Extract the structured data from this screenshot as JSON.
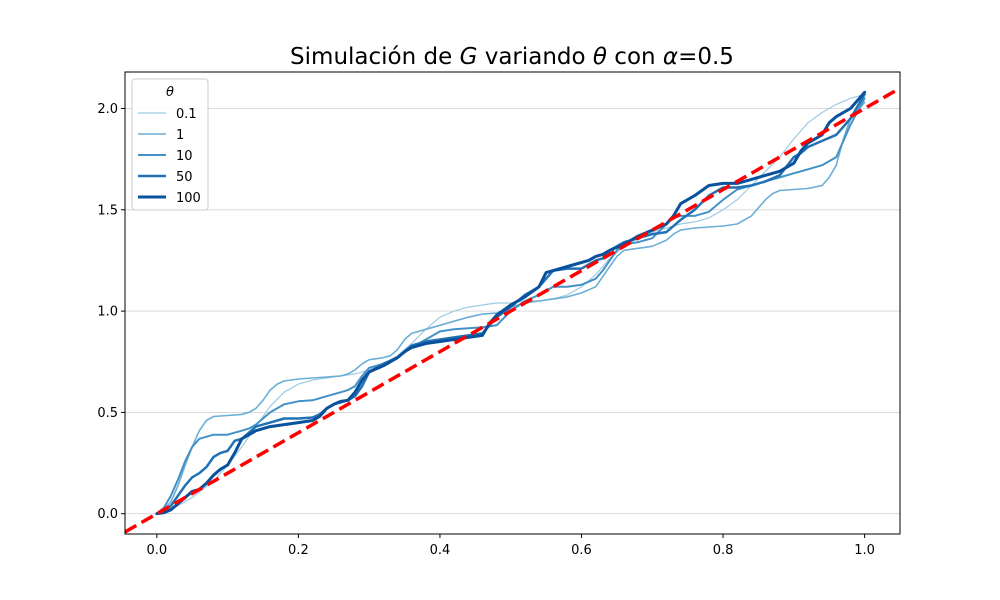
{
  "chart_data": {
    "type": "line",
    "title_parts": [
      {
        "text": "Simulación de ",
        "italic": false
      },
      {
        "text": "G",
        "italic": true
      },
      {
        "text": " variando ",
        "italic": false
      },
      {
        "text": "θ",
        "italic": true
      },
      {
        "text": " con ",
        "italic": false
      },
      {
        "text": "α",
        "italic": true
      },
      {
        "text": "=0.5",
        "italic": false
      }
    ],
    "xlim": [
      -0.045,
      1.05
    ],
    "ylim": [
      -0.1,
      2.18
    ],
    "xticks": [
      0.0,
      0.2,
      0.4,
      0.6,
      0.8,
      1.0
    ],
    "xtick_labels": [
      "0.0",
      "0.2",
      "0.4",
      "0.6",
      "0.8",
      "1.0"
    ],
    "yticks": [
      0.0,
      0.5,
      1.0,
      1.5,
      2.0
    ],
    "ytick_labels": [
      "0.0",
      "0.5",
      "1.0",
      "1.5",
      "2.0"
    ],
    "grid": "horizontal",
    "legend": {
      "title": "θ",
      "placement": "upper-left"
    },
    "series": [
      {
        "name": "0.1",
        "color": "#9ecae1",
        "linewidth": 1.2,
        "x": [
          0,
          0.02,
          0.05,
          0.08,
          0.1,
          0.12,
          0.14,
          0.16,
          0.18,
          0.2,
          0.22,
          0.24,
          0.26,
          0.28,
          0.3,
          0.32,
          0.34,
          0.36,
          0.38,
          0.4,
          0.42,
          0.44,
          0.46,
          0.48,
          0.5,
          0.52,
          0.54,
          0.56,
          0.58,
          0.6,
          0.62,
          0.64,
          0.66,
          0.68,
          0.7,
          0.72,
          0.74,
          0.76,
          0.78,
          0.8,
          0.82,
          0.84,
          0.86,
          0.88,
          0.9,
          0.92,
          0.94,
          0.96,
          0.98,
          1.0
        ],
        "y": [
          0,
          0.02,
          0.08,
          0.16,
          0.24,
          0.33,
          0.43,
          0.53,
          0.6,
          0.64,
          0.66,
          0.67,
          0.68,
          0.69,
          0.71,
          0.74,
          0.78,
          0.84,
          0.91,
          0.97,
          1.0,
          1.02,
          1.03,
          1.04,
          1.04,
          1.05,
          1.05,
          1.06,
          1.08,
          1.12,
          1.18,
          1.26,
          1.32,
          1.36,
          1.39,
          1.41,
          1.43,
          1.44,
          1.46,
          1.5,
          1.55,
          1.62,
          1.69,
          1.76,
          1.85,
          1.93,
          1.98,
          2.02,
          2.05,
          2.07
        ]
      },
      {
        "name": "1",
        "color": "#6baed6",
        "linewidth": 1.6,
        "x": [
          0,
          0.01,
          0.02,
          0.03,
          0.04,
          0.05,
          0.06,
          0.07,
          0.08,
          0.1,
          0.12,
          0.13,
          0.14,
          0.15,
          0.16,
          0.17,
          0.18,
          0.2,
          0.22,
          0.24,
          0.26,
          0.27,
          0.28,
          0.29,
          0.3,
          0.32,
          0.33,
          0.34,
          0.35,
          0.36,
          0.38,
          0.4,
          0.42,
          0.44,
          0.46,
          0.48,
          0.5,
          0.52,
          0.54,
          0.56,
          0.58,
          0.6,
          0.62,
          0.63,
          0.64,
          0.65,
          0.66,
          0.68,
          0.7,
          0.72,
          0.73,
          0.74,
          0.76,
          0.78,
          0.8,
          0.82,
          0.84,
          0.86,
          0.87,
          0.88,
          0.9,
          0.92,
          0.94,
          0.95,
          0.96,
          0.97,
          0.98,
          1.0
        ],
        "y": [
          0,
          0.02,
          0.06,
          0.14,
          0.24,
          0.33,
          0.41,
          0.46,
          0.48,
          0.485,
          0.49,
          0.5,
          0.52,
          0.56,
          0.61,
          0.64,
          0.655,
          0.665,
          0.67,
          0.675,
          0.68,
          0.69,
          0.71,
          0.74,
          0.76,
          0.77,
          0.78,
          0.81,
          0.86,
          0.89,
          0.91,
          0.93,
          0.95,
          0.97,
          0.985,
          0.99,
          1.02,
          1.04,
          1.05,
          1.06,
          1.07,
          1.09,
          1.12,
          1.17,
          1.22,
          1.27,
          1.3,
          1.31,
          1.32,
          1.35,
          1.38,
          1.4,
          1.41,
          1.415,
          1.42,
          1.43,
          1.47,
          1.55,
          1.58,
          1.595,
          1.6,
          1.605,
          1.62,
          1.66,
          1.72,
          1.85,
          1.95,
          2.03
        ]
      },
      {
        "name": "10",
        "color": "#4292c6",
        "linewidth": 2.0,
        "x": [
          0,
          0.01,
          0.02,
          0.03,
          0.04,
          0.05,
          0.06,
          0.08,
          0.1,
          0.11,
          0.12,
          0.13,
          0.14,
          0.16,
          0.18,
          0.2,
          0.22,
          0.24,
          0.26,
          0.27,
          0.28,
          0.29,
          0.3,
          0.32,
          0.34,
          0.36,
          0.38,
          0.4,
          0.42,
          0.44,
          0.46,
          0.48,
          0.5,
          0.52,
          0.54,
          0.55,
          0.56,
          0.58,
          0.6,
          0.62,
          0.63,
          0.64,
          0.65,
          0.66,
          0.68,
          0.7,
          0.72,
          0.73,
          0.74,
          0.76,
          0.78,
          0.8,
          0.82,
          0.84,
          0.86,
          0.88,
          0.9,
          0.92,
          0.94,
          0.96,
          0.98,
          1.0
        ],
        "y": [
          0,
          0.03,
          0.09,
          0.17,
          0.26,
          0.33,
          0.37,
          0.39,
          0.39,
          0.4,
          0.41,
          0.42,
          0.44,
          0.5,
          0.54,
          0.555,
          0.56,
          0.58,
          0.6,
          0.61,
          0.63,
          0.68,
          0.72,
          0.74,
          0.77,
          0.82,
          0.86,
          0.9,
          0.91,
          0.915,
          0.92,
          0.93,
          1.0,
          1.05,
          1.08,
          1.1,
          1.12,
          1.12,
          1.13,
          1.16,
          1.2,
          1.25,
          1.3,
          1.33,
          1.34,
          1.36,
          1.43,
          1.46,
          1.47,
          1.47,
          1.49,
          1.55,
          1.6,
          1.62,
          1.64,
          1.66,
          1.68,
          1.7,
          1.72,
          1.76,
          1.92,
          2.05
        ]
      },
      {
        "name": "50",
        "color": "#2171b5",
        "linewidth": 2.5,
        "x": [
          0,
          0.01,
          0.02,
          0.03,
          0.04,
          0.05,
          0.06,
          0.07,
          0.08,
          0.09,
          0.1,
          0.11,
          0.12,
          0.13,
          0.14,
          0.15,
          0.16,
          0.18,
          0.2,
          0.22,
          0.23,
          0.24,
          0.25,
          0.26,
          0.27,
          0.28,
          0.29,
          0.3,
          0.32,
          0.34,
          0.35,
          0.36,
          0.38,
          0.4,
          0.42,
          0.44,
          0.46,
          0.47,
          0.48,
          0.5,
          0.52,
          0.54,
          0.55,
          0.56,
          0.58,
          0.6,
          0.61,
          0.62,
          0.63,
          0.64,
          0.66,
          0.68,
          0.7,
          0.72,
          0.74,
          0.76,
          0.78,
          0.8,
          0.82,
          0.84,
          0.86,
          0.88,
          0.9,
          0.91,
          0.92,
          0.94,
          0.96,
          0.98,
          1.0
        ],
        "y": [
          0,
          0.01,
          0.04,
          0.09,
          0.14,
          0.18,
          0.2,
          0.23,
          0.28,
          0.3,
          0.31,
          0.36,
          0.37,
          0.4,
          0.43,
          0.44,
          0.45,
          0.47,
          0.47,
          0.475,
          0.49,
          0.52,
          0.54,
          0.55,
          0.56,
          0.58,
          0.63,
          0.7,
          0.74,
          0.77,
          0.8,
          0.83,
          0.85,
          0.86,
          0.87,
          0.88,
          0.89,
          0.93,
          0.97,
          1.02,
          1.08,
          1.12,
          1.16,
          1.2,
          1.21,
          1.21,
          1.23,
          1.25,
          1.26,
          1.3,
          1.34,
          1.36,
          1.38,
          1.39,
          1.45,
          1.5,
          1.57,
          1.61,
          1.61,
          1.62,
          1.64,
          1.67,
          1.76,
          1.78,
          1.81,
          1.84,
          1.87,
          1.95,
          2.07
        ]
      },
      {
        "name": "100",
        "color": "#08519c",
        "linewidth": 3.0,
        "x": [
          0,
          0.01,
          0.02,
          0.03,
          0.04,
          0.05,
          0.06,
          0.07,
          0.08,
          0.09,
          0.1,
          0.11,
          0.12,
          0.13,
          0.14,
          0.16,
          0.18,
          0.2,
          0.22,
          0.23,
          0.24,
          0.25,
          0.26,
          0.27,
          0.28,
          0.29,
          0.3,
          0.32,
          0.34,
          0.35,
          0.36,
          0.38,
          0.4,
          0.42,
          0.44,
          0.46,
          0.47,
          0.48,
          0.5,
          0.52,
          0.54,
          0.55,
          0.56,
          0.58,
          0.6,
          0.61,
          0.62,
          0.63,
          0.64,
          0.66,
          0.68,
          0.7,
          0.72,
          0.73,
          0.74,
          0.76,
          0.78,
          0.8,
          0.82,
          0.84,
          0.86,
          0.88,
          0.9,
          0.91,
          0.92,
          0.94,
          0.95,
          0.96,
          0.98,
          1.0
        ],
        "y": [
          0,
          0.005,
          0.02,
          0.05,
          0.08,
          0.11,
          0.12,
          0.15,
          0.19,
          0.22,
          0.24,
          0.3,
          0.37,
          0.39,
          0.41,
          0.43,
          0.44,
          0.45,
          0.46,
          0.48,
          0.52,
          0.54,
          0.555,
          0.56,
          0.6,
          0.66,
          0.7,
          0.73,
          0.77,
          0.8,
          0.82,
          0.84,
          0.85,
          0.86,
          0.87,
          0.88,
          0.94,
          0.98,
          1.03,
          1.07,
          1.12,
          1.19,
          1.2,
          1.22,
          1.24,
          1.25,
          1.27,
          1.28,
          1.3,
          1.33,
          1.37,
          1.4,
          1.43,
          1.47,
          1.53,
          1.57,
          1.62,
          1.63,
          1.63,
          1.65,
          1.67,
          1.69,
          1.73,
          1.79,
          1.83,
          1.87,
          1.93,
          1.96,
          2.0,
          2.08
        ]
      }
    ],
    "reference_line": {
      "color": "#ff0000",
      "linewidth": 3.5,
      "dash": "dashed",
      "slope": 2.0,
      "intercept": 0.0
    }
  }
}
